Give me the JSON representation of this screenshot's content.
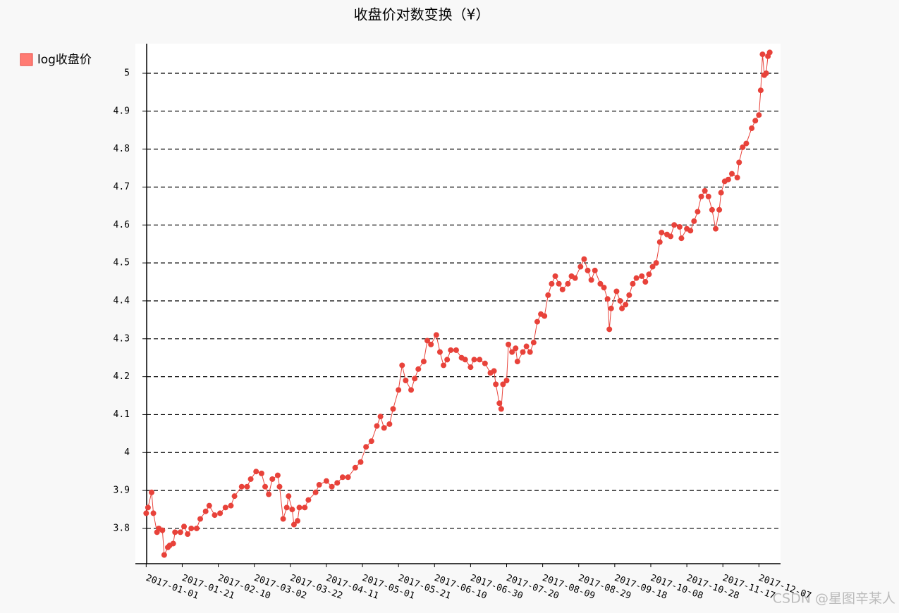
{
  "chart_data": {
    "type": "line",
    "title": "收盘价对数变换（¥）",
    "series": [
      {
        "name": "log收盘价",
        "color": "#e8423a",
        "legend_color": "#ff7b73",
        "x": [
          "2017-01-01",
          "2017-01-02",
          "2017-01-04",
          "2017-01-05",
          "2017-01-07",
          "2017-01-08",
          "2017-01-10",
          "2017-01-11",
          "2017-01-13",
          "2017-01-14",
          "2017-01-16",
          "2017-01-17",
          "2017-01-20",
          "2017-01-22",
          "2017-01-24",
          "2017-01-26",
          "2017-01-29",
          "2017-01-31",
          "2017-02-03",
          "2017-02-05",
          "2017-02-08",
          "2017-02-11",
          "2017-02-14",
          "2017-02-17",
          "2017-02-19",
          "2017-02-23",
          "2017-02-26",
          "2017-02-28",
          "2017-03-03",
          "2017-03-06",
          "2017-03-08",
          "2017-03-10",
          "2017-03-12",
          "2017-03-15",
          "2017-03-16",
          "2017-03-18",
          "2017-03-20",
          "2017-03-21",
          "2017-03-23",
          "2017-03-24",
          "2017-03-26",
          "2017-03-27",
          "2017-03-30",
          "2017-04-01",
          "2017-04-05",
          "2017-04-07",
          "2017-04-11",
          "2017-04-14",
          "2017-04-17",
          "2017-04-20",
          "2017-04-23",
          "2017-04-27",
          "2017-04-30",
          "2017-05-03",
          "2017-05-06",
          "2017-05-09",
          "2017-05-11",
          "2017-05-13",
          "2017-05-16",
          "2017-05-18",
          "2017-05-21",
          "2017-05-23",
          "2017-05-25",
          "2017-05-28",
          "2017-05-30",
          "2017-06-01",
          "2017-06-04",
          "2017-06-06",
          "2017-06-08",
          "2017-06-11",
          "2017-06-13",
          "2017-06-15",
          "2017-06-17",
          "2017-06-19",
          "2017-06-22",
          "2017-06-25",
          "2017-06-27",
          "2017-06-30",
          "2017-07-02",
          "2017-07-05",
          "2017-07-08",
          "2017-07-11",
          "2017-07-13",
          "2017-07-14",
          "2017-07-16",
          "2017-07-17",
          "2017-07-18",
          "2017-07-20",
          "2017-07-21",
          "2017-07-23",
          "2017-07-25",
          "2017-07-26",
          "2017-07-29",
          "2017-07-31",
          "2017-08-02",
          "2017-08-04",
          "2017-08-06",
          "2017-08-08",
          "2017-08-10",
          "2017-08-12",
          "2017-08-14",
          "2017-08-16",
          "2017-08-18",
          "2017-08-20",
          "2017-08-23",
          "2017-08-25",
          "2017-08-27",
          "2017-08-30",
          "2017-09-01",
          "2017-09-03",
          "2017-09-05",
          "2017-09-07",
          "2017-09-10",
          "2017-09-12",
          "2017-09-14",
          "2017-09-15",
          "2017-09-16",
          "2017-09-19",
          "2017-09-21",
          "2017-09-22",
          "2017-09-24",
          "2017-09-26",
          "2017-09-28",
          "2017-09-30",
          "2017-10-03",
          "2017-10-05",
          "2017-10-07",
          "2017-10-09",
          "2017-10-11",
          "2017-10-13",
          "2017-10-14",
          "2017-10-17",
          "2017-10-19",
          "2017-10-21",
          "2017-10-24",
          "2017-10-25",
          "2017-10-28",
          "2017-10-30",
          "2017-11-01",
          "2017-11-03",
          "2017-11-05",
          "2017-11-07",
          "2017-11-09",
          "2017-11-11",
          "2017-11-13",
          "2017-11-15",
          "2017-11-16",
          "2017-11-18",
          "2017-11-20",
          "2017-11-22",
          "2017-11-25",
          "2017-11-26",
          "2017-11-28",
          "2017-11-30",
          "2017-12-03",
          "2017-12-05",
          "2017-12-07",
          "2017-12-08",
          "2017-12-09",
          "2017-12-10",
          "2017-12-11",
          "2017-12-12",
          "2017-12-13"
        ],
        "values": [
          3.84,
          3.855,
          3.895,
          3.84,
          3.79,
          3.8,
          3.795,
          3.73,
          3.75,
          3.755,
          3.76,
          3.79,
          3.79,
          3.805,
          3.785,
          3.8,
          3.8,
          3.825,
          3.845,
          3.86,
          3.835,
          3.84,
          3.855,
          3.86,
          3.885,
          3.91,
          3.91,
          3.93,
          3.95,
          3.945,
          3.91,
          3.89,
          3.93,
          3.94,
          3.91,
          3.825,
          3.855,
          3.885,
          3.85,
          3.81,
          3.82,
          3.855,
          3.855,
          3.875,
          3.895,
          3.915,
          3.925,
          3.91,
          3.92,
          3.935,
          3.935,
          3.96,
          3.975,
          4.015,
          4.03,
          4.07,
          4.095,
          4.065,
          4.075,
          4.115,
          4.165,
          4.23,
          4.19,
          4.165,
          4.195,
          4.22,
          4.24,
          4.295,
          4.285,
          4.31,
          4.265,
          4.23,
          4.245,
          4.27,
          4.27,
          4.25,
          4.245,
          4.225,
          4.245,
          4.245,
          4.235,
          4.21,
          4.215,
          4.18,
          4.13,
          4.115,
          4.18,
          4.19,
          4.285,
          4.265,
          4.275,
          4.24,
          4.265,
          4.28,
          4.265,
          4.29,
          4.345,
          4.365,
          4.36,
          4.415,
          4.445,
          4.465,
          4.445,
          4.43,
          4.445,
          4.465,
          4.46,
          4.49,
          4.51,
          4.48,
          4.455,
          4.48,
          4.445,
          4.435,
          4.405,
          4.325,
          4.38,
          4.425,
          4.4,
          4.38,
          4.39,
          4.415,
          4.445,
          4.46,
          4.465,
          4.45,
          4.47,
          4.49,
          4.5,
          4.555,
          4.58,
          4.575,
          4.57,
          4.6,
          4.595,
          4.565,
          4.59,
          4.585,
          4.61,
          4.635,
          4.675,
          4.69,
          4.675,
          4.64,
          4.59,
          4.64,
          4.685,
          4.715,
          4.72,
          4.735,
          4.725,
          4.765,
          4.805,
          4.815,
          4.855,
          4.875,
          4.89,
          4.955,
          5.05,
          4.995,
          5.0,
          5.045,
          5.055
        ]
      }
    ],
    "xlim": [
      "2016-12-26",
      "2017-12-19"
    ],
    "xticks": [
      "2017-01-01",
      "2017-01-21",
      "2017-02-10",
      "2017-03-02",
      "2017-03-22",
      "2017-04-11",
      "2017-05-01",
      "2017-05-21",
      "2017-06-10",
      "2017-06-30",
      "2017-07-20",
      "2017-08-09",
      "2017-08-29",
      "2017-09-18",
      "2017-10-08",
      "2017-10-28",
      "2017-11-17",
      "2017-12-07"
    ],
    "ylim": [
      3.707,
      5.078
    ],
    "yticks": [
      3.8,
      3.9,
      4,
      4.1,
      4.2,
      4.3,
      4.4,
      4.5,
      4.6,
      4.7,
      4.8,
      4.9,
      5
    ],
    "grid": true,
    "legend": "top-left",
    "watermark": "CSDN @星图辛某人"
  }
}
